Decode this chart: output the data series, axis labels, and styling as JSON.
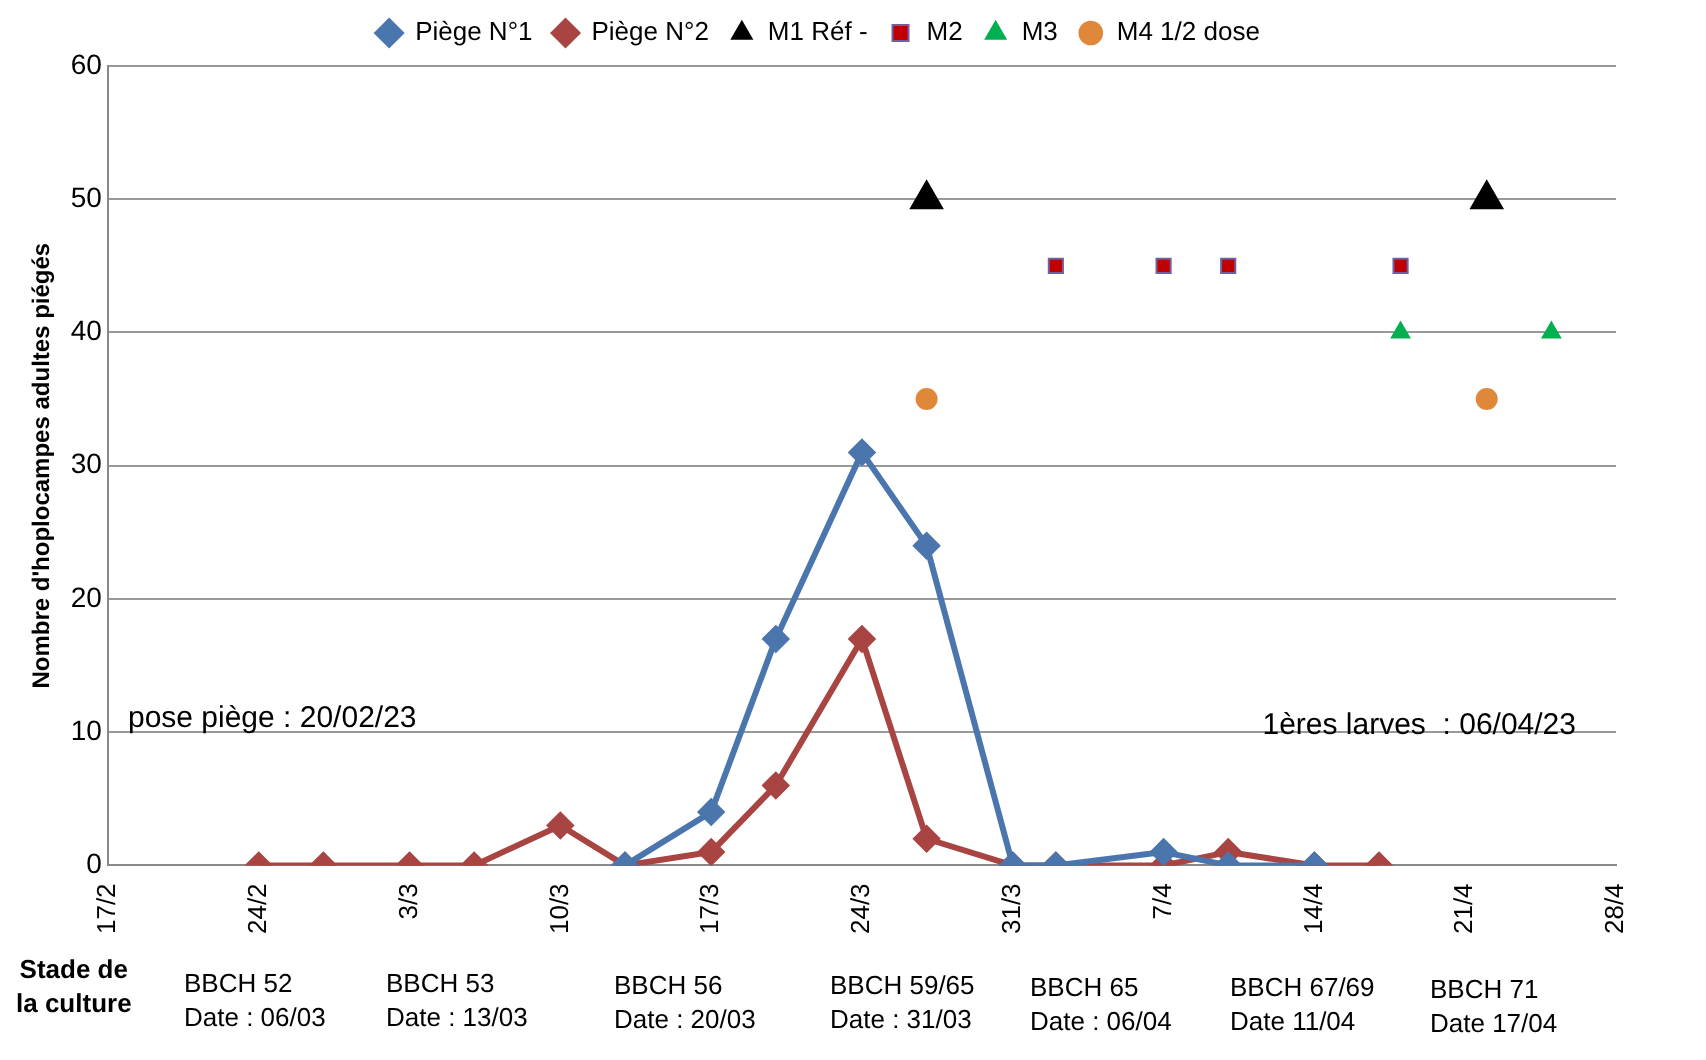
{
  "chart_data": {
    "type": "line",
    "ylabel": "Nombre d'hoplocampes adultes piégés",
    "xlim": [
      "--02-17",
      "--04-28"
    ],
    "xticks": [
      {
        "value": "--02-17",
        "label": "17/2"
      },
      {
        "value": "--02-24",
        "label": "24/2"
      },
      {
        "value": "--03-03",
        "label": "3/3"
      },
      {
        "value": "--03-10",
        "label": "10/3"
      },
      {
        "value": "--03-17",
        "label": "17/3"
      },
      {
        "value": "--03-24",
        "label": "24/3"
      },
      {
        "value": "--03-31",
        "label": "31/3"
      },
      {
        "value": "--04-07",
        "label": "7/4"
      },
      {
        "value": "--04-14",
        "label": "14/4"
      },
      {
        "value": "--04-21",
        "label": "21/4"
      },
      {
        "value": "--04-28",
        "label": "28/4"
      }
    ],
    "ylim": [
      0,
      60
    ],
    "yticks": [
      0,
      10,
      20,
      30,
      40,
      50,
      60
    ],
    "grid": "y",
    "legend": "top",
    "series": [
      {
        "name": "Piège N°1",
        "color": "#4a76ad",
        "type": "line",
        "marker": "diamond",
        "x": [
          "--03-13",
          "--03-17",
          "--03-20",
          "--03-24",
          "--03-27",
          "--03-31",
          "--04-02",
          "--04-07",
          "--04-10",
          "--04-14"
        ],
        "values": [
          0,
          4,
          17,
          31,
          24,
          0,
          0,
          1,
          0,
          0
        ]
      },
      {
        "name": "Piège N°2",
        "color": "#a84442",
        "type": "line",
        "marker": "diamond",
        "x": [
          "--02-24",
          "--02-27",
          "--03-03",
          "--03-06",
          "--03-10",
          "--03-13",
          "--03-17",
          "--03-20",
          "--03-24",
          "--03-27",
          "--03-31",
          "--04-02",
          "--04-07",
          "--04-10",
          "--04-14",
          "--04-17"
        ],
        "values": [
          0,
          0,
          0,
          0,
          3,
          0,
          1,
          6,
          17,
          2,
          0,
          0,
          0,
          1,
          0,
          0
        ]
      },
      {
        "name": "M1 Réf -",
        "color": "#000000",
        "type": "scatter",
        "marker": "triangle",
        "x": [
          "--03-27",
          "--04-22"
        ],
        "values": [
          50,
          50
        ]
      },
      {
        "name": "M2",
        "color": "#c00000",
        "type": "scatter",
        "marker": "square",
        "x": [
          "--04-02",
          "--04-07",
          "--04-10",
          "--04-18"
        ],
        "values": [
          45,
          45,
          45,
          45
        ]
      },
      {
        "name": "M3",
        "color": "#00b050",
        "type": "scatter",
        "marker": "triangle",
        "x": [
          "--04-18",
          "--04-25"
        ],
        "values": [
          40,
          40
        ]
      },
      {
        "name": "M4 1/2 dose",
        "color": "#e0883a",
        "type": "scatter",
        "marker": "circle",
        "x": [
          "--03-27",
          "--04-22"
        ],
        "values": [
          35,
          35
        ]
      }
    ],
    "annotations": [
      "pose piège : 20/02/23",
      "1ères larves  : 06/04/23",
      "Stade de\nla culture",
      "BBCH 52\nDate : 06/03",
      "BBCH 53\nDate : 13/03",
      "BBCH 56\nDate : 20/03",
      "BBCH 59/65\nDate : 31/03",
      "BBCH 65\nDate : 06/04",
      "BBCH 67/69\nDate 11/04",
      "BBCH 71\nDate 17/04"
    ]
  }
}
